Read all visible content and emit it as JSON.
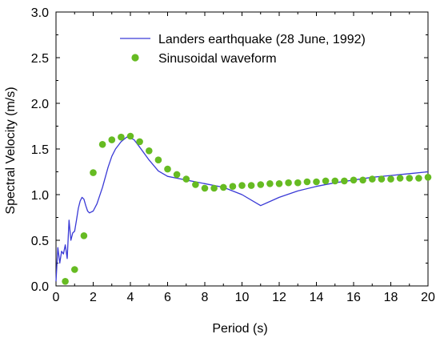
{
  "chart_data": {
    "type": "line",
    "xlabel": "Period (s)",
    "ylabel": "Spectral Velocity (m/s)",
    "xlim": [
      0,
      20
    ],
    "ylim": [
      0.0,
      3.0
    ],
    "xticks": [
      0,
      2,
      4,
      6,
      8,
      10,
      12,
      14,
      16,
      18,
      20
    ],
    "yticks": [
      0.0,
      0.5,
      1.0,
      1.5,
      2.0,
      2.5,
      3.0
    ],
    "ytick_labels": [
      "0.0",
      "0.5",
      "1.0",
      "1.5",
      "2.0",
      "2.5",
      "3.0"
    ],
    "grid": false,
    "legend_position": "top-right",
    "series": [
      {
        "name": "Landers earthquake (28 June, 1992)",
        "style": "line",
        "color": "#3a3ad6",
        "x": [
          0.0,
          0.1,
          0.2,
          0.3,
          0.4,
          0.5,
          0.6,
          0.7,
          0.8,
          0.9,
          1.0,
          1.1,
          1.2,
          1.3,
          1.4,
          1.5,
          1.6,
          1.7,
          1.8,
          2.0,
          2.2,
          2.5,
          2.8,
          3.0,
          3.2,
          3.5,
          3.8,
          4.0,
          4.2,
          4.5,
          5.0,
          5.5,
          6.0,
          6.5,
          7.0,
          7.5,
          8.0,
          9.0,
          10.0,
          11.0,
          12.0,
          13.0,
          14.0,
          15.0,
          16.0,
          17.0,
          18.0,
          19.0,
          20.0
        ],
        "y": [
          0.05,
          0.42,
          0.25,
          0.38,
          0.35,
          0.45,
          0.3,
          0.72,
          0.5,
          0.58,
          0.6,
          0.72,
          0.85,
          0.93,
          0.97,
          0.95,
          0.88,
          0.82,
          0.8,
          0.82,
          0.9,
          1.08,
          1.3,
          1.42,
          1.5,
          1.58,
          1.63,
          1.62,
          1.6,
          1.52,
          1.38,
          1.26,
          1.2,
          1.18,
          1.16,
          1.14,
          1.12,
          1.08,
          1.0,
          0.88,
          0.97,
          1.04,
          1.09,
          1.13,
          1.16,
          1.19,
          1.21,
          1.23,
          1.25
        ]
      },
      {
        "name": "Sinusoidal waveform",
        "style": "marker",
        "color": "#66bb22",
        "x": [
          0.5,
          1.0,
          1.5,
          2.0,
          2.5,
          3.0,
          3.5,
          4.0,
          4.5,
          5.0,
          5.5,
          6.0,
          6.5,
          7.0,
          7.5,
          8.0,
          8.5,
          9.0,
          9.5,
          10.0,
          10.5,
          11.0,
          11.5,
          12.0,
          12.5,
          13.0,
          13.5,
          14.0,
          14.5,
          15.0,
          15.5,
          16.0,
          16.5,
          17.0,
          17.5,
          18.0,
          18.5,
          19.0,
          19.5,
          20.0
        ],
        "y": [
          0.05,
          0.18,
          0.55,
          1.24,
          1.55,
          1.6,
          1.63,
          1.64,
          1.58,
          1.48,
          1.38,
          1.28,
          1.22,
          1.17,
          1.11,
          1.07,
          1.07,
          1.08,
          1.09,
          1.1,
          1.1,
          1.11,
          1.12,
          1.12,
          1.13,
          1.13,
          1.14,
          1.14,
          1.15,
          1.15,
          1.15,
          1.16,
          1.16,
          1.17,
          1.17,
          1.17,
          1.18,
          1.18,
          1.18,
          1.19
        ]
      }
    ]
  }
}
